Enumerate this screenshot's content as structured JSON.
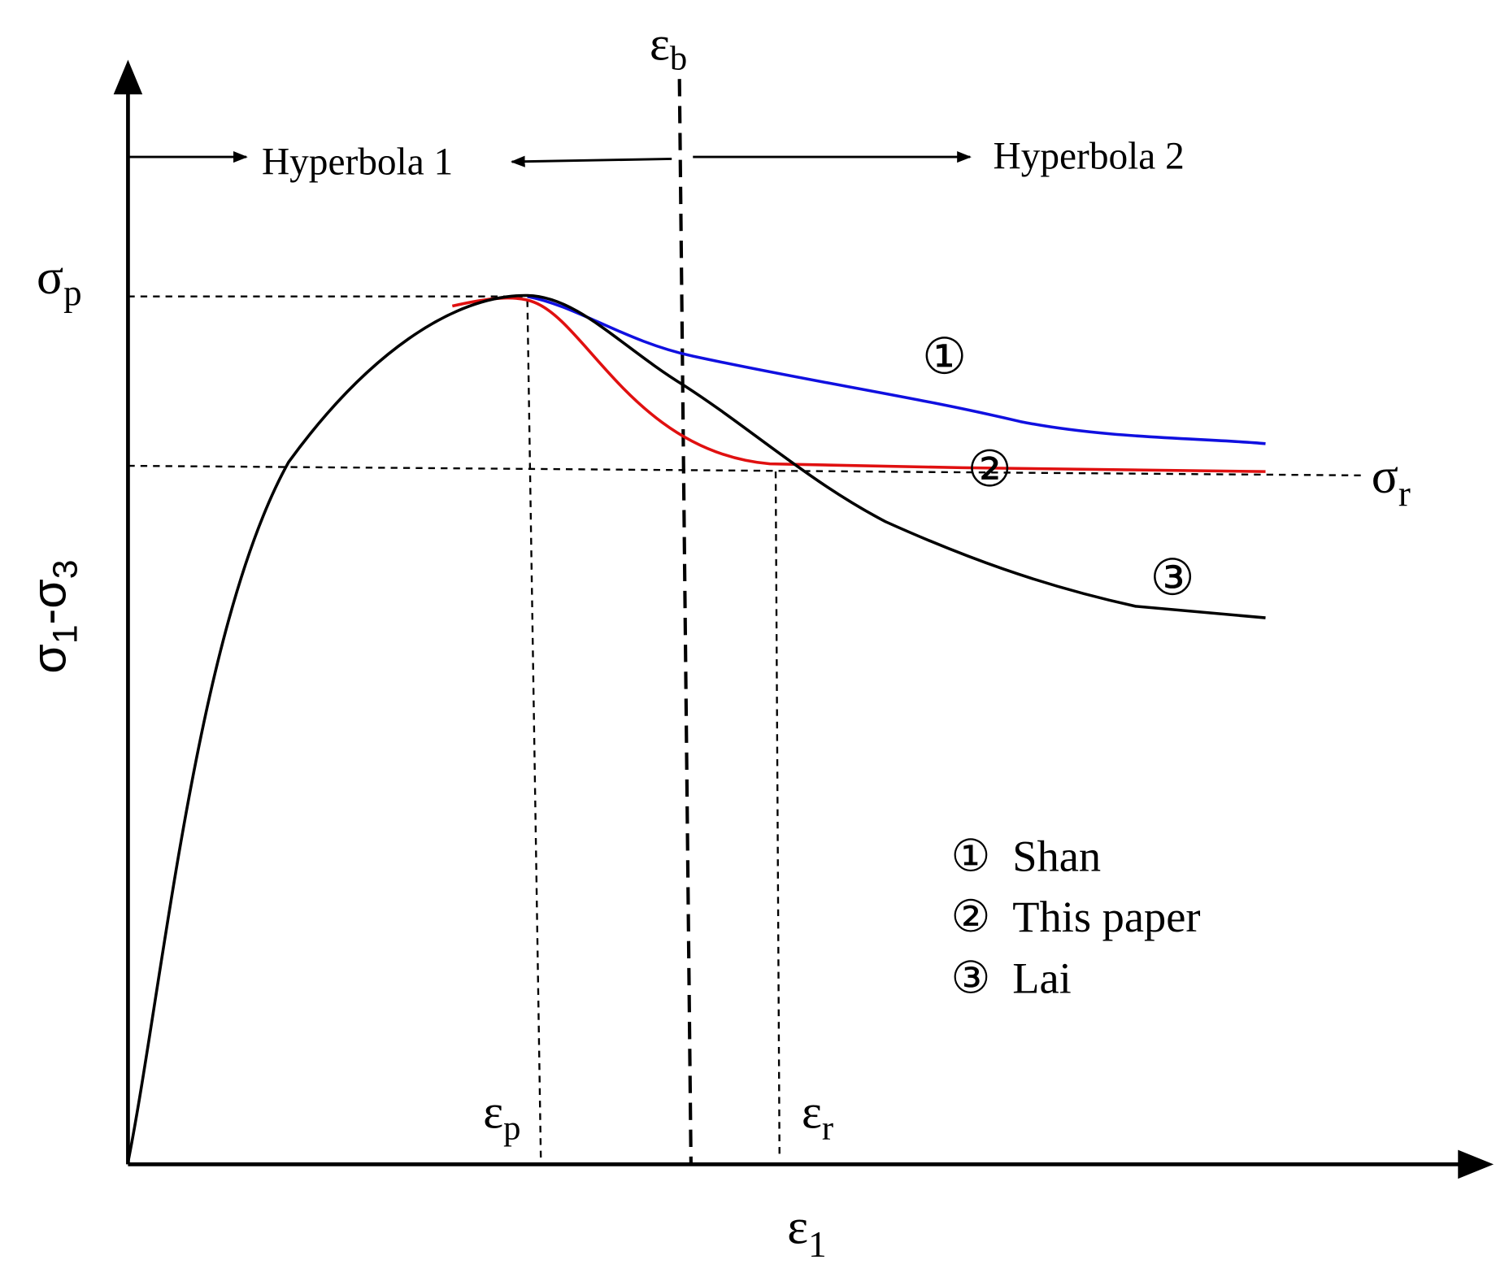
{
  "axes": {
    "y_label": {
      "s1": "σ",
      "sub1": "1",
      "s2": "-σ",
      "sub2": "3"
    },
    "x_label": {
      "symbol": "ε",
      "sub": "1"
    }
  },
  "markers": {
    "eps_b": {
      "symbol": "ε",
      "sub": "b"
    },
    "sigma_p": {
      "symbol": "σ",
      "sub": "p"
    },
    "sigma_r": {
      "symbol": "σ",
      "sub": "r"
    },
    "eps_p": {
      "symbol": "ε",
      "sub": "p"
    },
    "eps_r": {
      "symbol": "ε",
      "sub": "r"
    }
  },
  "regions": [
    "Hyperbola  1",
    "Hyperbola  2"
  ],
  "curve_labels": [
    "①",
    "②",
    "③"
  ],
  "legend": [
    {
      "marker": "①",
      "label": "Shan"
    },
    {
      "marker": "②",
      "label": "This paper"
    },
    {
      "marker": "③",
      "label": "Lai"
    }
  ]
}
